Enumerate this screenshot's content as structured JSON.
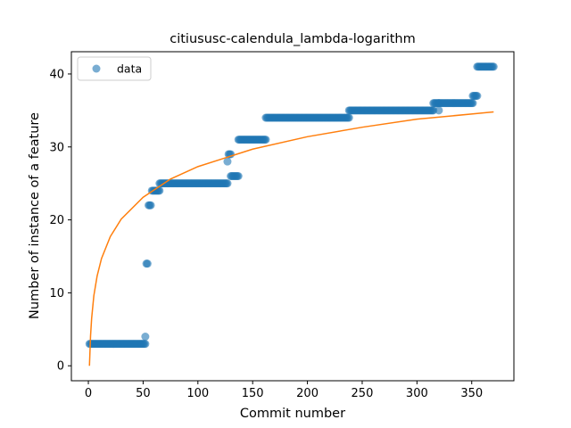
{
  "chart_data": {
    "type": "scatter",
    "title": "citiususc-calendula_lambda-logarithm",
    "xlabel": "Commit number",
    "ylabel": "Number of instance of a feature",
    "xlim": [
      -15.5,
      388.5
    ],
    "ylim": [
      -2.05,
      43.05
    ],
    "x_ticks": [
      0,
      50,
      100,
      150,
      200,
      250,
      300,
      350
    ],
    "y_ticks": [
      0,
      10,
      20,
      30,
      40
    ],
    "grid": false,
    "legend": {
      "position": "top-left",
      "entries": [
        "data"
      ]
    },
    "colors": {
      "data": "#1f77b4",
      "fit": "#ff7f0e"
    },
    "series": [
      {
        "name": "data",
        "kind": "scatter",
        "segments": [
          {
            "x_start": 1,
            "x_end": 52,
            "y": 3
          },
          {
            "x_start": 52,
            "x_end": 52,
            "y": 4
          },
          {
            "x_start": 53,
            "x_end": 54,
            "y": 14
          },
          {
            "x_start": 55,
            "x_end": 57,
            "y": 22
          },
          {
            "x_start": 58,
            "x_end": 65,
            "y": 24
          },
          {
            "x_start": 65,
            "x_end": 127,
            "y": 25
          },
          {
            "x_start": 127,
            "x_end": 127,
            "y": 28
          },
          {
            "x_start": 128,
            "x_end": 130,
            "y": 29
          },
          {
            "x_start": 130,
            "x_end": 137,
            "y": 26
          },
          {
            "x_start": 137,
            "x_end": 162,
            "y": 31
          },
          {
            "x_start": 162,
            "x_end": 238,
            "y": 34
          },
          {
            "x_start": 238,
            "x_end": 315,
            "y": 35
          },
          {
            "x_start": 315,
            "x_end": 320,
            "y": 36
          },
          {
            "x_start": 320,
            "x_end": 320,
            "y": 35
          },
          {
            "x_start": 320,
            "x_end": 351,
            "y": 36
          },
          {
            "x_start": 351,
            "x_end": 355,
            "y": 37
          },
          {
            "x_start": 355,
            "x_end": 370,
            "y": 41
          }
        ]
      },
      {
        "name": "",
        "kind": "line",
        "x_start": 1,
        "x_end": 370,
        "points": [
          [
            1,
            0
          ],
          [
            2,
            4.1
          ],
          [
            3,
            6.5
          ],
          [
            5,
            9.6
          ],
          [
            8,
            12.3
          ],
          [
            12,
            14.7
          ],
          [
            20,
            17.7
          ],
          [
            30,
            20.1
          ],
          [
            50,
            23.1
          ],
          [
            75,
            25.6
          ],
          [
            100,
            27.3
          ],
          [
            150,
            29.7
          ],
          [
            200,
            31.4
          ],
          [
            250,
            32.7
          ],
          [
            300,
            33.8
          ],
          [
            370,
            34.8
          ]
        ]
      }
    ]
  }
}
